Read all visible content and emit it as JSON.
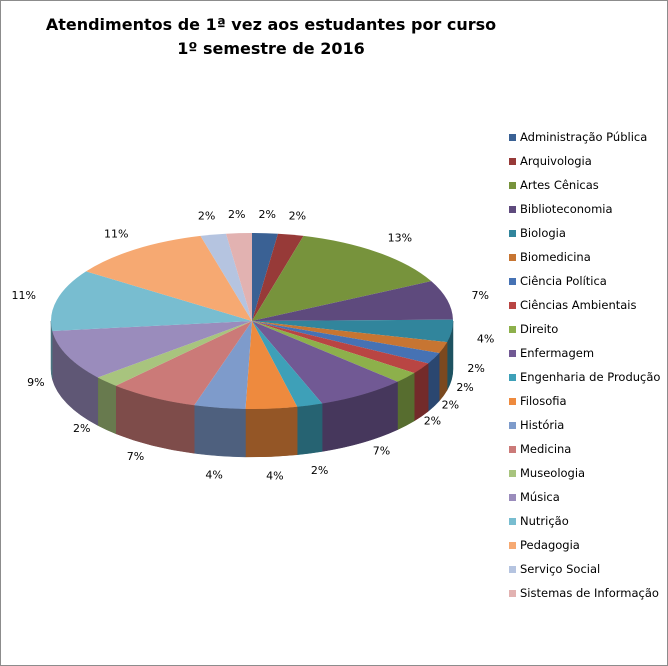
{
  "chart_data": {
    "type": "pie",
    "style": "3d",
    "title": [
      "Atendimentos de 1ª vez aos estudantes por curso",
      "1º semestre de 2016"
    ],
    "legend_position": "right",
    "slices": [
      {
        "label": "Administração Pública",
        "value": 2,
        "text": "2%",
        "color": "#3A6194"
      },
      {
        "label": "Arquivologia",
        "value": 2,
        "text": "2%",
        "color": "#973A38"
      },
      {
        "label": "Artes Cênicas",
        "value": 13,
        "text": "13%",
        "color": "#77933C"
      },
      {
        "label": "Biblioteconomia",
        "value": 7,
        "text": "7%",
        "color": "#5E4A7D"
      },
      {
        "label": "Biologia",
        "value": 4,
        "text": "4%",
        "color": "#31859C"
      },
      {
        "label": "Biomedicina",
        "value": 2,
        "text": "2%",
        "color": "#C77532"
      },
      {
        "label": "Ciência Política",
        "value": 2,
        "text": "2%",
        "color": "#4672B4"
      },
      {
        "label": "Ciências Ambientais",
        "value": 2,
        "text": "2%",
        "color": "#B94543"
      },
      {
        "label": "Direito",
        "value": 2,
        "text": "2%",
        "color": "#8DB04B"
      },
      {
        "label": "Enfermagem",
        "value": 7,
        "text": "7%",
        "color": "#715994"
      },
      {
        "label": "Engenharia de Produção",
        "value": 2,
        "text": "2%",
        "color": "#3EA0B8"
      },
      {
        "label": "Filosofia",
        "value": 4,
        "text": "4%",
        "color": "#EE8A3E"
      },
      {
        "label": "História",
        "value": 4,
        "text": "4%",
        "color": "#7E9BCB"
      },
      {
        "label": "Medicina",
        "value": 7,
        "text": "7%",
        "color": "#CB7A78"
      },
      {
        "label": "Museologia",
        "value": 2,
        "text": "2%",
        "color": "#A8C47E"
      },
      {
        "label": "Música",
        "value": 9,
        "text": "9%",
        "color": "#9A8CBC"
      },
      {
        "label": "Nutrição",
        "value": 11,
        "text": "11%",
        "color": "#78BDD0"
      },
      {
        "label": "Pedagogia",
        "value": 11,
        "text": "11%",
        "color": "#F6A972"
      },
      {
        "label": "Serviço Social",
        "value": 2,
        "text": "2%",
        "color": "#B5C4E0"
      },
      {
        "label": "Sistemas de Informação",
        "value": 2,
        "text": "2%",
        "color": "#E2B2B1"
      }
    ]
  }
}
